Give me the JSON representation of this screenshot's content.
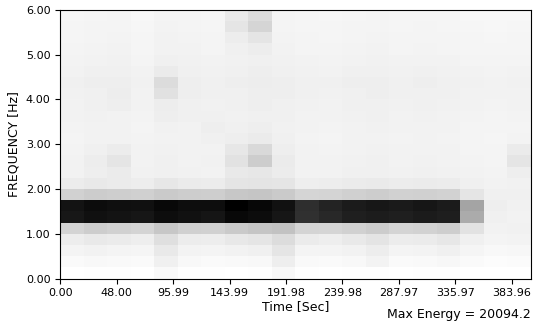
{
  "chart_data": {
    "type": "heatmap",
    "x_label": "Time [Sec]",
    "y_label": "FREQUENCY [Hz]",
    "annotation": "Max Energy = 20094.2",
    "xlim": [
      0,
      400
    ],
    "ylim": [
      0,
      6
    ],
    "xticks": [
      {
        "value": 0,
        "label": "0.00"
      },
      {
        "value": 48,
        "label": "48.00"
      },
      95.99,
      143.99,
      191.98,
      239.98,
      287.97,
      335.97,
      383.96
    ],
    "yticks": [
      {
        "value": 0,
        "label": "0.00"
      },
      {
        "value": 1,
        "label": "1.00"
      },
      {
        "value": 2,
        "label": "2.00"
      },
      {
        "value": 3,
        "label": "3.00"
      },
      {
        "value": 4,
        "label": "4.00"
      },
      {
        "value": 5,
        "label": "5.00"
      },
      {
        "value": 6,
        "label": "6.00"
      }
    ],
    "x_edges": [
      0,
      20,
      40,
      60,
      80,
      100,
      120,
      140,
      160,
      180,
      200,
      220,
      240,
      260,
      280,
      300,
      320,
      340,
      360,
      380,
      400
    ],
    "y_edges": [
      0,
      0.25,
      0.5,
      0.75,
      1.0,
      1.25,
      1.5,
      1.75,
      2.0,
      2.25,
      2.5,
      2.75,
      3.0,
      3.25,
      3.5,
      3.75,
      4.0,
      4.25,
      4.5,
      4.75,
      5.0,
      5.25,
      5.5,
      5.75,
      6.0
    ],
    "cells": [
      [
        700,
        800,
        900,
        700,
        1600,
        900,
        800,
        700,
        900,
        1700,
        800,
        700,
        800,
        900,
        700,
        800,
        900,
        700,
        600,
        700
      ],
      [
        1500,
        1800,
        1600,
        1400,
        3000,
        1700,
        1500,
        1600,
        1800,
        3200,
        1600,
        1500,
        1700,
        2600,
        1500,
        1600,
        2000,
        1500,
        1200,
        1300
      ],
      [
        2400,
        2800,
        2500,
        2300,
        3800,
        2600,
        2400,
        2700,
        3000,
        4200,
        2500,
        2400,
        2800,
        3400,
        2500,
        2600,
        3000,
        2200,
        1800,
        2000
      ],
      [
        3400,
        3800,
        3600,
        3300,
        4800,
        3500,
        3400,
        3900,
        4200,
        5200,
        3600,
        3300,
        3800,
        4400,
        3500,
        3600,
        4000,
        3000,
        2400,
        2600
      ],
      [
        6000,
        6500,
        6200,
        6000,
        7000,
        6300,
        6200,
        6800,
        7200,
        7500,
        6000,
        5800,
        6200,
        6600,
        6000,
        6100,
        6400,
        4500,
        2800,
        2900
      ],
      [
        18500,
        19000,
        18800,
        18600,
        19200,
        18900,
        18700,
        19500,
        19300,
        18600,
        17000,
        17500,
        18000,
        18200,
        18000,
        18300,
        18100,
        9000,
        3000,
        2800
      ],
      [
        18800,
        19300,
        19100,
        19000,
        19500,
        19200,
        19200,
        20094.2,
        19600,
        18900,
        17200,
        17800,
        18300,
        18500,
        18400,
        18600,
        18300,
        9500,
        3200,
        2900
      ],
      [
        6200,
        6600,
        6400,
        6300,
        6800,
        6500,
        6400,
        7000,
        7200,
        6800,
        5800,
        5900,
        6300,
        6500,
        6200,
        6300,
        6100,
        4200,
        3000,
        3100
      ],
      [
        3500,
        3800,
        3600,
        3400,
        4000,
        3600,
        3500,
        4200,
        4400,
        4200,
        3300,
        3400,
        3600,
        3700,
        3500,
        3600,
        3500,
        3000,
        2800,
        2900
      ],
      [
        2800,
        3200,
        3600,
        2900,
        3100,
        2900,
        2800,
        3800,
        4000,
        3500,
        2700,
        2800,
        3000,
        3100,
        2900,
        3000,
        2900,
        2700,
        2600,
        3200
      ],
      [
        2700,
        3400,
        4200,
        2800,
        3000,
        2800,
        2900,
        4500,
        6500,
        3600,
        2800,
        2700,
        2900,
        3000,
        2800,
        2900,
        2800,
        2600,
        2500,
        4200
      ],
      [
        2600,
        3000,
        3500,
        2700,
        2900,
        2700,
        2800,
        4000,
        5500,
        3200,
        2700,
        2600,
        2800,
        2900,
        2700,
        2800,
        2700,
        2500,
        2400,
        3600
      ],
      [
        2500,
        2700,
        2800,
        2600,
        2800,
        2700,
        3100,
        3300,
        3600,
        3000,
        2600,
        2500,
        2700,
        2800,
        2600,
        2700,
        2600,
        2400,
        2300,
        2600
      ],
      [
        2600,
        2800,
        2700,
        2500,
        2900,
        2800,
        3300,
        3000,
        3200,
        2900,
        2700,
        2600,
        2800,
        2900,
        2700,
        2800,
        2700,
        2500,
        2400,
        2500
      ],
      [
        2700,
        2900,
        2800,
        2600,
        3200,
        3000,
        3000,
        2900,
        3100,
        3000,
        2800,
        2700,
        2900,
        3000,
        2800,
        2900,
        2800,
        2600,
        2500,
        2600
      ],
      [
        2800,
        3000,
        3200,
        2700,
        3400,
        3100,
        2900,
        3000,
        3200,
        3100,
        2900,
        2800,
        3000,
        3100,
        2900,
        3000,
        2900,
        2700,
        2600,
        2700
      ],
      [
        2900,
        3100,
        3400,
        2800,
        4600,
        3200,
        3000,
        3100,
        3300,
        3200,
        3000,
        2900,
        3100,
        3200,
        3000,
        3100,
        3000,
        2800,
        2700,
        2800
      ],
      [
        3000,
        3200,
        3300,
        2900,
        5200,
        3300,
        3100,
        3200,
        3400,
        3300,
        3100,
        3000,
        3200,
        3300,
        3100,
        3200,
        3100,
        2900,
        2800,
        2900
      ],
      [
        2800,
        3000,
        3100,
        2700,
        3600,
        3100,
        2900,
        3000,
        3200,
        3100,
        2900,
        2800,
        3000,
        3100,
        2900,
        3000,
        2900,
        2700,
        2600,
        2700
      ],
      [
        2600,
        2800,
        2900,
        2500,
        3000,
        2900,
        2700,
        2900,
        3000,
        2900,
        2700,
        2600,
        2800,
        2900,
        2700,
        2800,
        2700,
        2500,
        2400,
        2500
      ],
      [
        2400,
        2600,
        2700,
        2300,
        2800,
        2700,
        2500,
        3000,
        3400,
        2700,
        2500,
        2400,
        2600,
        2700,
        2500,
        2600,
        2500,
        2300,
        2200,
        2300
      ],
      [
        2300,
        2500,
        2600,
        2200,
        2700,
        2600,
        2400,
        3400,
        4200,
        2600,
        2400,
        2300,
        2500,
        2600,
        2400,
        2500,
        2400,
        2200,
        2100,
        2200
      ],
      [
        2200,
        2400,
        2500,
        2100,
        2600,
        2500,
        2300,
        4200,
        5800,
        2500,
        2300,
        2200,
        2400,
        2500,
        2300,
        2400,
        2300,
        2100,
        2000,
        2100
      ],
      [
        2100,
        2300,
        2400,
        2000,
        2500,
        2400,
        2200,
        3800,
        5200,
        2400,
        2200,
        2100,
        2300,
        2400,
        2200,
        2300,
        2200,
        2000,
        1900,
        2000
      ]
    ]
  }
}
